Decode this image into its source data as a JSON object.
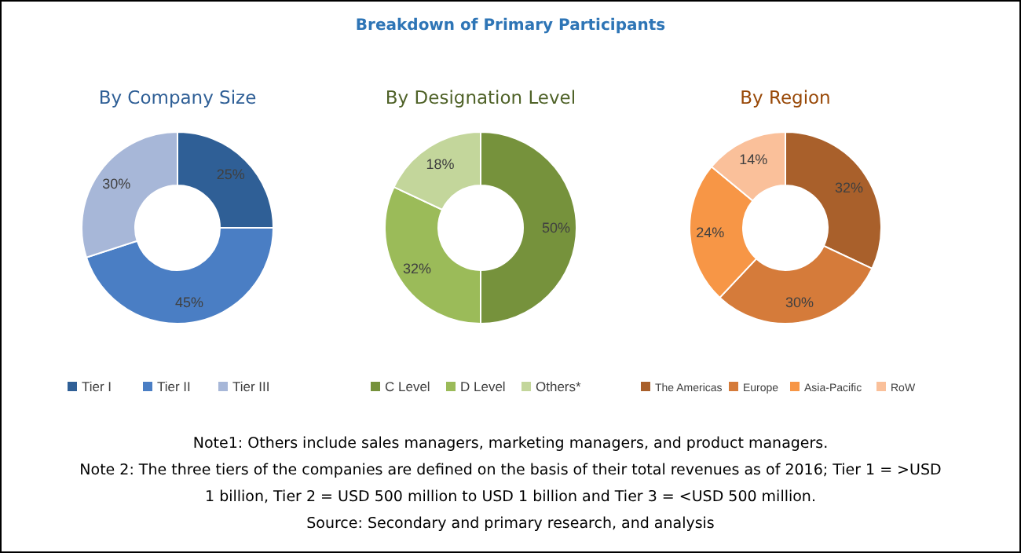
{
  "chart_data": [
    {
      "type": "other",
      "title": "Breakdown of Primary Participants",
      "annotations": [
        "Note1: Others include sales managers, marketing managers, and product managers.",
        "Note 2: The three tiers of the companies are defined on the basis of their total revenues as of 2016; Tier 1 = >USD 1 billion, Tier 2 = USD 500 million to USD 1 billion and Tier 3 = <USD 500 million.",
        "Source: Secondary and primary research, and analysis"
      ]
    },
    {
      "type": "donut",
      "title": "By Company Size",
      "categories": [
        "Tier I",
        "Tier II",
        "Tier III"
      ],
      "values": [
        25,
        45,
        30
      ],
      "value_labels": [
        "25%",
        "45%",
        "30%"
      ],
      "colors": [
        "#2f5f96",
        "#4a7ec4",
        "#a7b7d8"
      ],
      "legend": "bottom"
    },
    {
      "type": "donut",
      "title": "By Designation Level",
      "categories": [
        "C Level",
        "D Level",
        "Others*"
      ],
      "values": [
        50,
        32,
        18
      ],
      "value_labels": [
        "50%",
        "32%",
        "18%"
      ],
      "colors": [
        "#76923c",
        "#9bbb59",
        "#c3d69b"
      ],
      "legend": "bottom"
    },
    {
      "type": "donut",
      "title": "By Region",
      "categories": [
        "The Americas",
        "Europe",
        "Asia-Pacific",
        "RoW"
      ],
      "values": [
        32,
        30,
        24,
        14
      ],
      "value_labels": [
        "32%",
        "30%",
        "24%",
        "14%"
      ],
      "colors": [
        "#a9602b",
        "#d57b3a",
        "#f79646",
        "#fac09a"
      ],
      "legend": "bottom"
    }
  ]
}
